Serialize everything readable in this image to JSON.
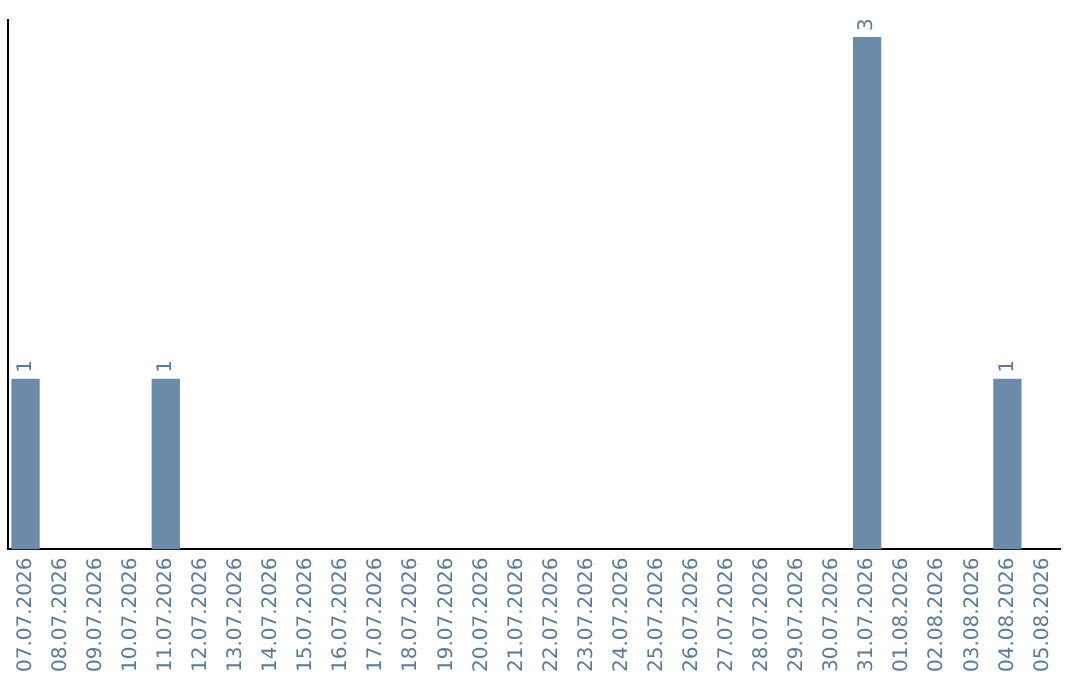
{
  "chart_data": {
    "type": "bar",
    "categories": [
      "07.07.2026",
      "08.07.2026",
      "09.07.2026",
      "10.07.2026",
      "11.07.2026",
      "12.07.2026",
      "13.07.2026",
      "14.07.2026",
      "15.07.2026",
      "16.07.2026",
      "17.07.2026",
      "18.07.2026",
      "19.07.2026",
      "20.07.2026",
      "21.07.2026",
      "22.07.2026",
      "23.07.2026",
      "24.07.2026",
      "25.07.2026",
      "26.07.2026",
      "27.07.2026",
      "28.07.2026",
      "29.07.2026",
      "30.07.2026",
      "31.07.2026",
      "01.08.2026",
      "02.08.2026",
      "03.08.2026",
      "04.08.2026",
      "05.08.2026"
    ],
    "values": [
      1,
      0,
      0,
      0,
      1,
      0,
      0,
      0,
      0,
      0,
      0,
      0,
      0,
      0,
      0,
      0,
      0,
      0,
      0,
      0,
      0,
      0,
      0,
      0,
      3,
      0,
      0,
      0,
      1,
      0
    ],
    "value_labels": [
      "1",
      null,
      null,
      null,
      "1",
      null,
      null,
      null,
      null,
      null,
      null,
      null,
      null,
      null,
      null,
      null,
      null,
      null,
      null,
      null,
      null,
      null,
      null,
      null,
      "3",
      null,
      null,
      null,
      "1",
      null
    ],
    "color": "#6b8bab",
    "ylim": [
      0,
      3.1
    ],
    "grid": false,
    "legend": false
  }
}
